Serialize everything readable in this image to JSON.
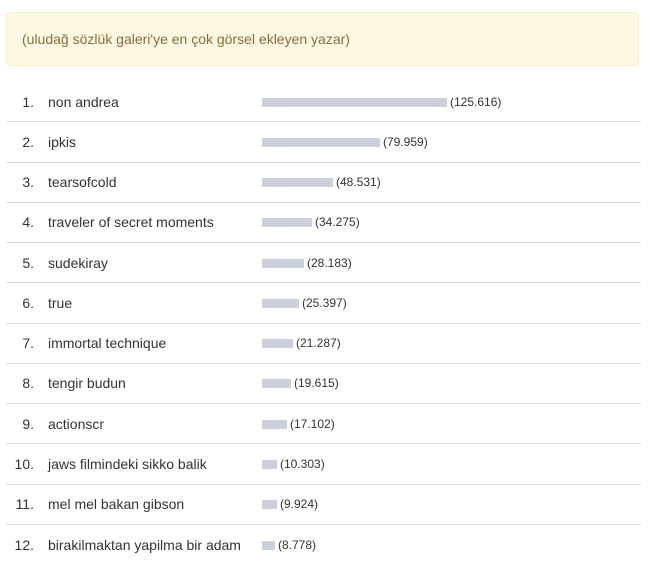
{
  "notice": {
    "text": "(uludağ sözlük galeri'ye en çok görsel ekleyen yazar)"
  },
  "rows": [
    {
      "rank": "1.",
      "name": "non andrea",
      "value": "(125.616)",
      "count": 125616
    },
    {
      "rank": "2.",
      "name": "ipkis",
      "value": "(79.959)",
      "count": 79959
    },
    {
      "rank": "3.",
      "name": "tearsofcold",
      "value": "(48.531)",
      "count": 48531
    },
    {
      "rank": "4.",
      "name": "traveler of secret moments",
      "value": "(34.275)",
      "count": 34275
    },
    {
      "rank": "5.",
      "name": "sudekiray",
      "value": "(28.183)",
      "count": 28183
    },
    {
      "rank": "6.",
      "name": "true",
      "value": "(25.397)",
      "count": 25397
    },
    {
      "rank": "7.",
      "name": "immortal technique",
      "value": "(21.287)",
      "count": 21287
    },
    {
      "rank": "8.",
      "name": "tengir budun",
      "value": "(19.615)",
      "count": 19615
    },
    {
      "rank": "9.",
      "name": "actionscr",
      "value": "(17.102)",
      "count": 17102
    },
    {
      "rank": "10.",
      "name": "jaws filmindeki sikko balik",
      "value": "(10.303)",
      "count": 10303
    },
    {
      "rank": "11.",
      "name": "mel mel bakan gibson",
      "value": "(9.924)",
      "count": 9924
    },
    {
      "rank": "12.",
      "name": "birakilmaktan yapilma bir adam",
      "value": "(8.778)",
      "count": 8778
    }
  ]
}
